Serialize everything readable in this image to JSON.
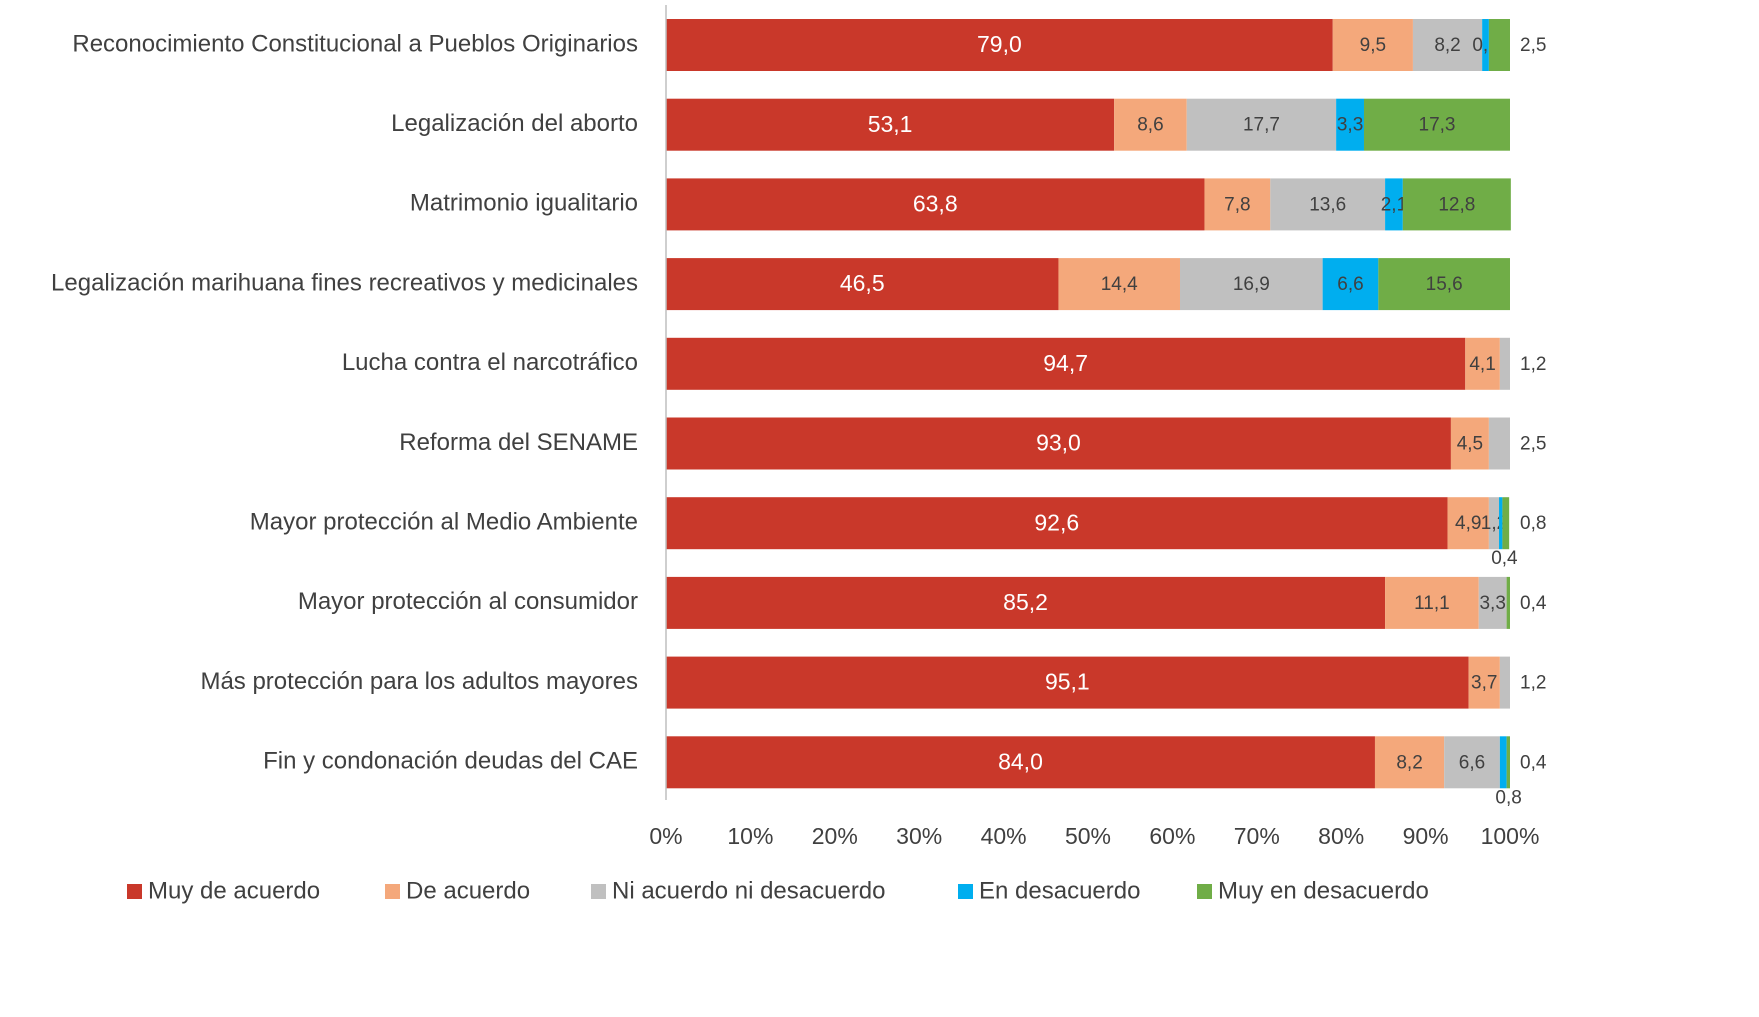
{
  "chart_data": {
    "type": "stacked-barh",
    "categories": [
      "Reconocimiento Constitucional a Pueblos Originarios",
      "Legalización del aborto",
      "Matrimonio igualitario",
      "Legalización marihuana fines recreativos y medicinales",
      "Lucha contra el narcotráfico",
      "Reforma del SENAME",
      "Mayor protección al Medio Ambiente",
      "Mayor protección al consumidor",
      "Más protección para los adultos mayores",
      "Fin y condonación deudas del CAE"
    ],
    "series": [
      {
        "name": "Muy de acuerdo",
        "color": "#c9382a",
        "values": [
          79.0,
          53.1,
          63.8,
          46.5,
          94.7,
          93.0,
          92.6,
          85.2,
          95.1,
          84.0
        ],
        "value_labels": [
          "79,0",
          "53,1",
          "63,8",
          "46,5",
          "94,7",
          "93,0",
          "92,6",
          "85,2",
          "95,1",
          "84,0"
        ]
      },
      {
        "name": "De acuerdo",
        "color": "#f4a87b",
        "values": [
          9.5,
          8.6,
          7.8,
          14.4,
          4.1,
          4.5,
          4.9,
          11.1,
          3.7,
          8.2
        ],
        "value_labels": [
          "9,5",
          "8,6",
          "7,8",
          "14,4",
          "4,1",
          "4,5",
          "4,9",
          "11,1",
          "3,7",
          "8,2"
        ]
      },
      {
        "name": "Ni acuerdo ni desacuerdo",
        "color": "#c0c0c0",
        "values": [
          8.2,
          17.7,
          13.6,
          16.9,
          1.2,
          2.5,
          1.2,
          3.3,
          1.2,
          6.6
        ],
        "value_labels": [
          "8,2",
          "17,7",
          "13,6",
          "16,9",
          "1,2",
          "2,5",
          "1,2",
          "3,3",
          "1,2",
          "6,6"
        ]
      },
      {
        "name": "En desacuerdo",
        "color": "#00aeef",
        "values": [
          0.8,
          3.3,
          2.1,
          6.6,
          null,
          null,
          0.4,
          null,
          null,
          0.8
        ],
        "value_labels": [
          "0,8",
          "3,3",
          "2,1",
          "6,6",
          null,
          null,
          "0,4",
          null,
          null,
          "0,8"
        ]
      },
      {
        "name": "Muy en desacuerdo",
        "color": "#70ad47",
        "values": [
          2.5,
          17.3,
          12.8,
          15.6,
          null,
          null,
          0.8,
          0.4,
          null,
          0.4
        ],
        "value_labels": [
          "2,5",
          "17,3",
          "12,8",
          "15,6",
          null,
          null,
          "0,8",
          "0,4",
          null,
          "0,4"
        ]
      }
    ],
    "xlim": [
      0,
      100
    ],
    "xticks": [
      {
        "value": 0,
        "label": "0%"
      },
      {
        "value": 10,
        "label": "10%"
      },
      {
        "value": 20,
        "label": "20%"
      },
      {
        "value": 30,
        "label": "30%"
      },
      {
        "value": 40,
        "label": "40%"
      },
      {
        "value": 50,
        "label": "50%"
      },
      {
        "value": 60,
        "label": "60%"
      },
      {
        "value": 70,
        "label": "70%"
      },
      {
        "value": 80,
        "label": "80%"
      },
      {
        "value": 90,
        "label": "90%"
      },
      {
        "value": 100,
        "label": "100%"
      }
    ],
    "legend": "bottom"
  }
}
